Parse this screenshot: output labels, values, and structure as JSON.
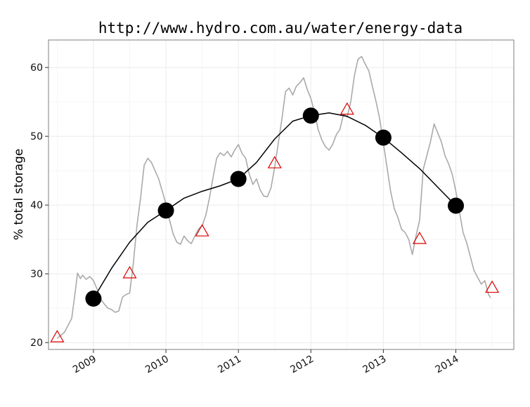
{
  "chart_data": {
    "type": "line",
    "title": "http://www.hydro.com.au/water/energy-data",
    "xlabel": "",
    "ylabel": "% total storage",
    "xlim": [
      2008.38,
      2014.8
    ],
    "ylim": [
      19,
      64
    ],
    "x_ticks": [
      2009,
      2010,
      2011,
      2012,
      2013,
      2014
    ],
    "x_tick_labels": [
      "2009",
      "2010",
      "2011",
      "2012",
      "2013",
      "2014"
    ],
    "y_ticks": [
      20,
      30,
      40,
      50,
      60
    ],
    "y_tick_labels": [
      "20",
      "30",
      "40",
      "50",
      "60"
    ],
    "grid": true,
    "colors": {
      "raw_line": "#aaaaaa",
      "smooth_line": "#000000",
      "annual_points": "#000000",
      "midyear_triangles": "#dd0000",
      "grid": "#ebebeb",
      "panel_border": "#7f7f7f"
    },
    "series": [
      {
        "kind": "raw",
        "x": [
          2008.5,
          2008.6,
          2008.7,
          2008.75,
          2008.78,
          2008.82,
          2008.85,
          2008.9,
          2008.95,
          2009.0,
          2009.05,
          2009.1,
          2009.15,
          2009.2,
          2009.25,
          2009.3,
          2009.35,
          2009.4,
          2009.45,
          2009.5,
          2009.55,
          2009.6,
          2009.65,
          2009.7,
          2009.75,
          2009.8,
          2009.85,
          2009.9,
          2009.95,
          2010.0,
          2010.05,
          2010.1,
          2010.15,
          2010.2,
          2010.25,
          2010.3,
          2010.35,
          2010.4,
          2010.45,
          2010.5,
          2010.55,
          2010.6,
          2010.65,
          2010.7,
          2010.75,
          2010.8,
          2010.85,
          2010.9,
          2010.95,
          2011.0,
          2011.05,
          2011.1,
          2011.15,
          2011.2,
          2011.25,
          2011.3,
          2011.35,
          2011.4,
          2011.45,
          2011.5,
          2011.55,
          2011.6,
          2011.65,
          2011.7,
          2011.75,
          2011.8,
          2011.85,
          2011.9,
          2011.95,
          2012.0,
          2012.05,
          2012.1,
          2012.15,
          2012.2,
          2012.25,
          2012.3,
          2012.35,
          2012.4,
          2012.45,
          2012.5,
          2012.55,
          2012.6,
          2012.65,
          2012.7,
          2012.75,
          2012.8,
          2012.85,
          2012.9,
          2012.95,
          2013.0,
          2013.05,
          2013.1,
          2013.15,
          2013.2,
          2013.25,
          2013.3,
          2013.35,
          2013.4,
          2013.45,
          2013.5,
          2013.55,
          2013.6,
          2013.65,
          2013.7,
          2013.75,
          2013.8,
          2013.85,
          2013.9,
          2013.95,
          2014.0,
          2014.05,
          2014.1,
          2014.15,
          2014.2,
          2014.25,
          2014.3,
          2014.35,
          2014.4,
          2014.45,
          2014.48
        ],
        "values": [
          20.6,
          21.5,
          23.5,
          27.5,
          30.1,
          29.3,
          29.8,
          29.2,
          29.6,
          29.0,
          27.8,
          26.3,
          25.6,
          25.0,
          24.8,
          24.4,
          24.6,
          26.6,
          27.0,
          27.2,
          31.5,
          37.0,
          41.0,
          45.8,
          46.8,
          46.2,
          45.0,
          43.8,
          42.0,
          40.2,
          37.8,
          35.8,
          34.6,
          34.3,
          35.5,
          34.8,
          34.4,
          35.5,
          36.5,
          37.0,
          38.5,
          41.0,
          44.0,
          46.8,
          47.6,
          47.2,
          47.8,
          47.0,
          48.0,
          48.8,
          47.5,
          46.8,
          44.5,
          43.0,
          43.8,
          42.2,
          41.3,
          41.2,
          42.5,
          45.5,
          49.0,
          52.5,
          56.5,
          57.0,
          56.0,
          57.3,
          57.8,
          58.5,
          56.8,
          55.5,
          53.5,
          51.0,
          49.5,
          48.5,
          48.0,
          48.8,
          50.2,
          51.0,
          53.2,
          52.8,
          55.0,
          58.8,
          61.2,
          61.6,
          60.5,
          59.5,
          57.2,
          55.0,
          52.5,
          49.0,
          45.5,
          42.0,
          39.5,
          38.2,
          36.5,
          36.0,
          35.0,
          32.8,
          35.5,
          37.8,
          45.2,
          47.2,
          49.2,
          51.8,
          50.5,
          49.2,
          47.2,
          46.0,
          44.5,
          42.0,
          39.0,
          36.0,
          34.5,
          32.5,
          30.5,
          29.5,
          28.5,
          29.0,
          27.0,
          26.5
        ]
      },
      {
        "kind": "smooth",
        "x": [
          2009.0,
          2009.25,
          2009.5,
          2009.75,
          2010.0,
          2010.25,
          2010.5,
          2010.75,
          2011.0,
          2011.25,
          2011.5,
          2011.75,
          2012.0,
          2012.25,
          2012.5,
          2012.75,
          2013.0,
          2013.25,
          2013.5,
          2013.75,
          2014.0
        ],
        "values": [
          26.4,
          30.8,
          34.6,
          37.5,
          39.2,
          41.0,
          42.0,
          42.8,
          43.8,
          46.2,
          49.6,
          52.2,
          53.0,
          53.4,
          52.9,
          51.6,
          49.8,
          47.6,
          45.3,
          42.6,
          39.9
        ]
      },
      {
        "kind": "annual_points",
        "x": [
          2009,
          2010,
          2011,
          2012,
          2013,
          2014
        ],
        "values": [
          26.4,
          39.2,
          43.8,
          53.0,
          49.8,
          39.9
        ]
      },
      {
        "kind": "midyear_triangles",
        "x": [
          2008.5,
          2009.5,
          2010.5,
          2011.5,
          2012.5,
          2013.5,
          2014.5
        ],
        "values": [
          20.8,
          30.1,
          36.2,
          46.1,
          53.9,
          35.1,
          28.0
        ]
      }
    ]
  }
}
